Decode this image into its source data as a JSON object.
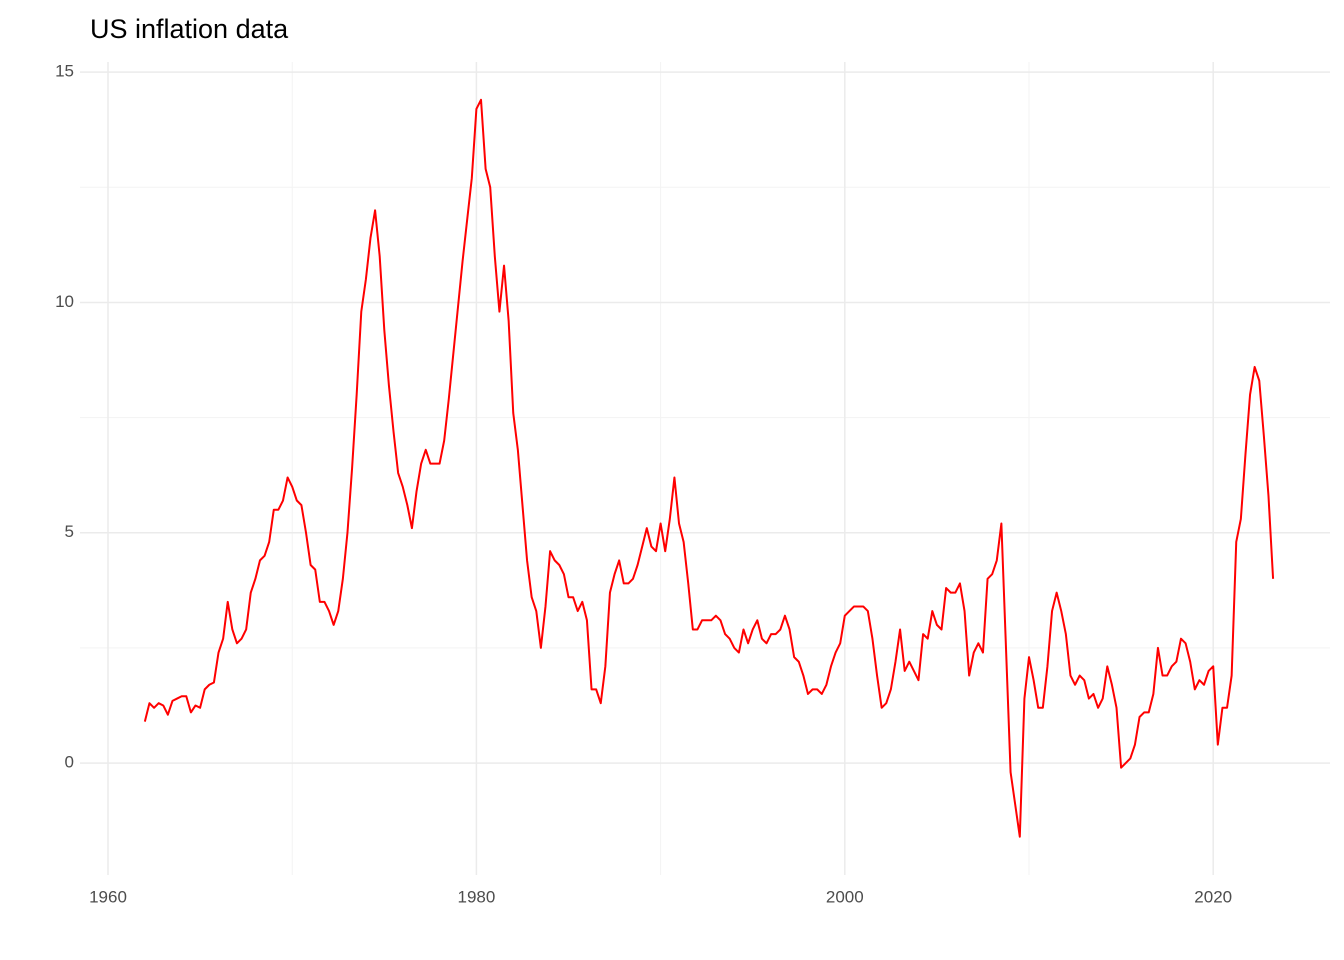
{
  "chart_data": {
    "type": "line",
    "title": "US inflation data",
    "x": [
      1962,
      1962.25,
      1962.5,
      1962.75,
      1963,
      1963.25,
      1963.5,
      1963.75,
      1964,
      1964.25,
      1964.5,
      1964.75,
      1965,
      1965.25,
      1965.5,
      1965.75,
      1966,
      1966.25,
      1966.5,
      1966.75,
      1967,
      1967.25,
      1967.5,
      1967.75,
      1968,
      1968.25,
      1968.5,
      1968.75,
      1969,
      1969.25,
      1969.5,
      1969.75,
      1970,
      1970.25,
      1970.5,
      1970.75,
      1971,
      1971.25,
      1971.5,
      1971.75,
      1972,
      1972.25,
      1972.5,
      1972.75,
      1973,
      1973.25,
      1973.5,
      1973.75,
      1974,
      1974.25,
      1974.5,
      1974.75,
      1975,
      1975.25,
      1975.5,
      1975.75,
      1976,
      1976.25,
      1976.5,
      1976.75,
      1977,
      1977.25,
      1977.5,
      1977.75,
      1978,
      1978.25,
      1978.5,
      1978.75,
      1979,
      1979.25,
      1979.5,
      1979.75,
      1980,
      1980.25,
      1980.5,
      1980.75,
      1981,
      1981.25,
      1981.5,
      1981.75,
      1982,
      1982.25,
      1982.5,
      1982.75,
      1983,
      1983.25,
      1983.5,
      1983.75,
      1984,
      1984.25,
      1984.5,
      1984.75,
      1985,
      1985.25,
      1985.5,
      1985.75,
      1986,
      1986.25,
      1986.5,
      1986.75,
      1987,
      1987.25,
      1987.5,
      1987.75,
      1988,
      1988.25,
      1988.5,
      1988.75,
      1989,
      1989.25,
      1989.5,
      1989.75,
      1990,
      1990.25,
      1990.5,
      1990.75,
      1991,
      1991.25,
      1991.5,
      1991.75,
      1992,
      1992.25,
      1992.5,
      1992.75,
      1993,
      1993.25,
      1993.5,
      1993.75,
      1994,
      1994.25,
      1994.5,
      1994.75,
      1995,
      1995.25,
      1995.5,
      1995.75,
      1996,
      1996.25,
      1996.5,
      1996.75,
      1997,
      1997.25,
      1997.5,
      1997.75,
      1998,
      1998.25,
      1998.5,
      1998.75,
      1999,
      1999.25,
      1999.5,
      1999.75,
      2000,
      2000.25,
      2000.5,
      2000.75,
      2001,
      2001.25,
      2001.5,
      2001.75,
      2002,
      2002.25,
      2002.5,
      2002.75,
      2003,
      2003.25,
      2003.5,
      2003.75,
      2004,
      2004.25,
      2004.5,
      2004.75,
      2005,
      2005.25,
      2005.5,
      2005.75,
      2006,
      2006.25,
      2006.5,
      2006.75,
      2007,
      2007.25,
      2007.5,
      2007.75,
      2008,
      2008.25,
      2008.5,
      2008.75,
      2009,
      2009.25,
      2009.5,
      2009.75,
      2010,
      2010.25,
      2010.5,
      2010.75,
      2011,
      2011.25,
      2011.5,
      2011.75,
      2012,
      2012.25,
      2012.5,
      2012.75,
      2013,
      2013.25,
      2013.5,
      2013.75,
      2014,
      2014.25,
      2014.5,
      2014.75,
      2015,
      2015.25,
      2015.5,
      2015.75,
      2016,
      2016.25,
      2016.5,
      2016.75,
      2017,
      2017.25,
      2017.5,
      2017.75,
      2018,
      2018.25,
      2018.5,
      2018.75,
      2019,
      2019.25,
      2019.5,
      2019.75,
      2020,
      2020.25,
      2020.5,
      2020.75,
      2021,
      2021.25,
      2021.5,
      2021.75,
      2022,
      2022.25,
      2022.5,
      2022.75,
      2023,
      2023.25
    ],
    "series": [
      {
        "color": "#ff0000",
        "values": [
          0.9,
          1.3,
          1.2,
          1.3,
          1.25,
          1.05,
          1.35,
          1.4,
          1.45,
          1.45,
          1.1,
          1.25,
          1.2,
          1.6,
          1.7,
          1.75,
          2.4,
          2.7,
          3.5,
          2.9,
          2.6,
          2.7,
          2.9,
          3.7,
          4.0,
          4.4,
          4.5,
          4.8,
          5.5,
          5.5,
          5.7,
          6.2,
          6.0,
          5.7,
          5.6,
          5.0,
          4.3,
          4.2,
          3.5,
          3.5,
          3.3,
          3.0,
          3.3,
          4.0,
          5.0,
          6.4,
          8.0,
          9.8,
          10.5,
          11.4,
          12.0,
          11.0,
          9.4,
          8.2,
          7.2,
          6.3,
          6.0,
          5.6,
          5.1,
          5.9,
          6.5,
          6.8,
          6.5,
          6.5,
          6.5,
          7.0,
          7.9,
          8.9,
          9.9,
          10.9,
          11.8,
          12.7,
          14.2,
          14.4,
          12.9,
          12.5,
          11.0,
          9.8,
          10.8,
          9.6,
          7.6,
          6.8,
          5.6,
          4.4,
          3.6,
          3.3,
          2.5,
          3.4,
          4.6,
          4.4,
          4.3,
          4.1,
          3.6,
          3.6,
          3.3,
          3.5,
          3.1,
          1.6,
          1.6,
          1.3,
          2.1,
          3.7,
          4.1,
          4.4,
          3.9,
          3.9,
          4.0,
          4.3,
          4.7,
          5.1,
          4.7,
          4.6,
          5.2,
          4.6,
          5.3,
          6.2,
          5.2,
          4.8,
          3.9,
          2.9,
          2.9,
          3.1,
          3.1,
          3.1,
          3.2,
          3.1,
          2.8,
          2.7,
          2.5,
          2.4,
          2.9,
          2.6,
          2.9,
          3.1,
          2.7,
          2.6,
          2.8,
          2.8,
          2.9,
          3.2,
          2.9,
          2.3,
          2.2,
          1.9,
          1.5,
          1.6,
          1.6,
          1.5,
          1.7,
          2.1,
          2.4,
          2.6,
          3.2,
          3.3,
          3.4,
          3.4,
          3.4,
          3.3,
          2.7,
          1.9,
          1.2,
          1.3,
          1.6,
          2.2,
          2.9,
          2.0,
          2.2,
          2.0,
          1.8,
          2.8,
          2.7,
          3.3,
          3.0,
          2.9,
          3.8,
          3.7,
          3.7,
          3.9,
          3.3,
          1.9,
          2.4,
          2.6,
          2.4,
          4.0,
          4.1,
          4.4,
          5.2,
          2.5,
          -0.2,
          -0.9,
          -1.6,
          1.4,
          2.3,
          1.8,
          1.2,
          1.2,
          2.1,
          3.3,
          3.7,
          3.3,
          2.8,
          1.9,
          1.7,
          1.9,
          1.8,
          1.4,
          1.5,
          1.2,
          1.4,
          2.1,
          1.7,
          1.2,
          -0.1,
          0.0,
          0.1,
          0.4,
          1.0,
          1.1,
          1.1,
          1.5,
          2.5,
          1.9,
          1.9,
          2.1,
          2.2,
          2.7,
          2.6,
          2.2,
          1.6,
          1.8,
          1.7,
          2.0,
          2.1,
          0.4,
          1.2,
          1.2,
          1.9,
          4.8,
          5.3,
          6.7,
          8.0,
          8.6,
          8.3,
          7.1,
          5.8,
          4.0
        ]
      }
    ],
    "xlim": [
      1958.48,
      2026.34
    ],
    "xticks": [
      1960,
      1980,
      2000,
      2020
    ],
    "ylim": [
      -2.43,
      15.22
    ],
    "yticks": [
      0,
      5,
      10,
      15
    ],
    "grid": true
  }
}
